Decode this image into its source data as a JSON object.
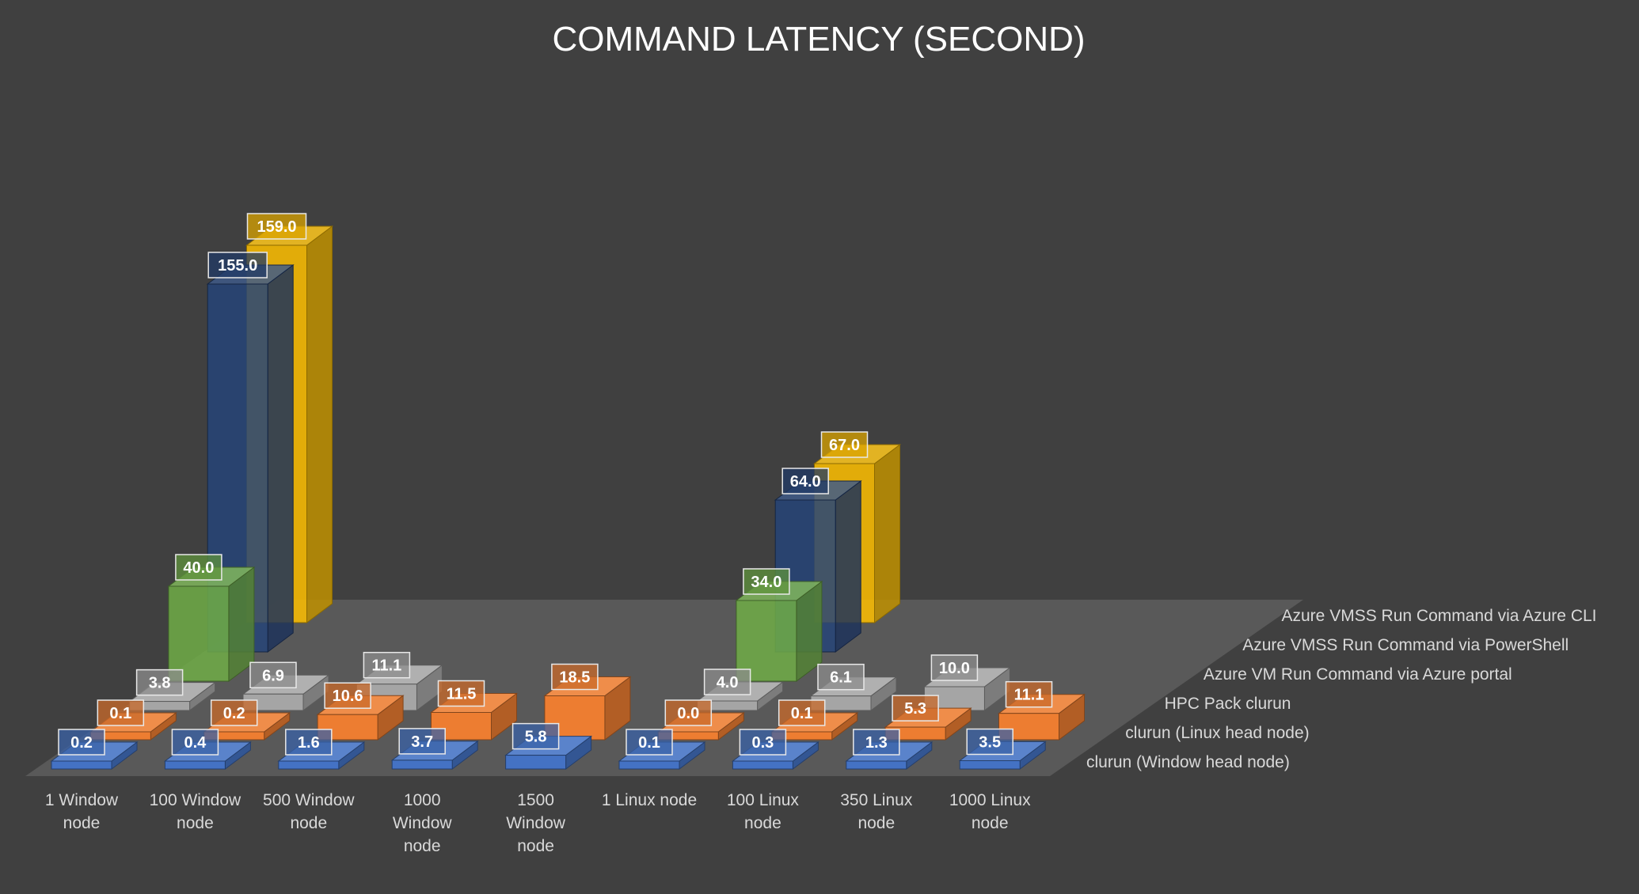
{
  "chart_data": {
    "type": "bar",
    "subtype": "3d-column",
    "title": "COMMAND LATENCY (SECOND)",
    "categories": [
      [
        "1 Window",
        "node"
      ],
      [
        "100 Window",
        "node"
      ],
      [
        "500 Window",
        "node"
      ],
      [
        "1000",
        "Window",
        "node"
      ],
      [
        "1500",
        "Window",
        "node"
      ],
      [
        "1 Linux node"
      ],
      [
        "100 Linux",
        "node"
      ],
      [
        "350 Linux",
        "node"
      ],
      [
        "1000 Linux",
        "node"
      ]
    ],
    "series": [
      {
        "name": "clurun (Window head node)",
        "color": "#4472c4",
        "values": [
          0.2,
          0.4,
          1.6,
          3.7,
          5.8,
          0.1,
          0.3,
          1.3,
          3.5
        ]
      },
      {
        "name": "clurun (Linux head node)",
        "color": "#ed7d31",
        "values": [
          0.1,
          0.2,
          10.6,
          11.5,
          18.5,
          0.0,
          0.1,
          5.3,
          11.1
        ]
      },
      {
        "name": "HPC Pack clurun",
        "color": "#a5a5a5",
        "values": [
          3.8,
          6.9,
          11.1,
          null,
          null,
          4.0,
          6.1,
          10.0,
          null
        ]
      },
      {
        "name": "Azure VM Run Command via Azure portal",
        "color": "#70ad47",
        "values": [
          40.0,
          null,
          null,
          null,
          null,
          34.0,
          null,
          null,
          null
        ]
      },
      {
        "name": "Azure VMSS Run Command via PowerShell",
        "color": "#264478",
        "values": [
          155.0,
          null,
          null,
          null,
          null,
          64.0,
          null,
          null,
          null
        ]
      },
      {
        "name": "Azure VMSS Run Command via Azure CLI",
        "color": "#ffc000",
        "values": [
          159.0,
          null,
          null,
          null,
          null,
          67.0,
          null,
          null,
          null
        ]
      }
    ],
    "ylabel": "",
    "xlabel": "",
    "value_format": "0.0"
  }
}
